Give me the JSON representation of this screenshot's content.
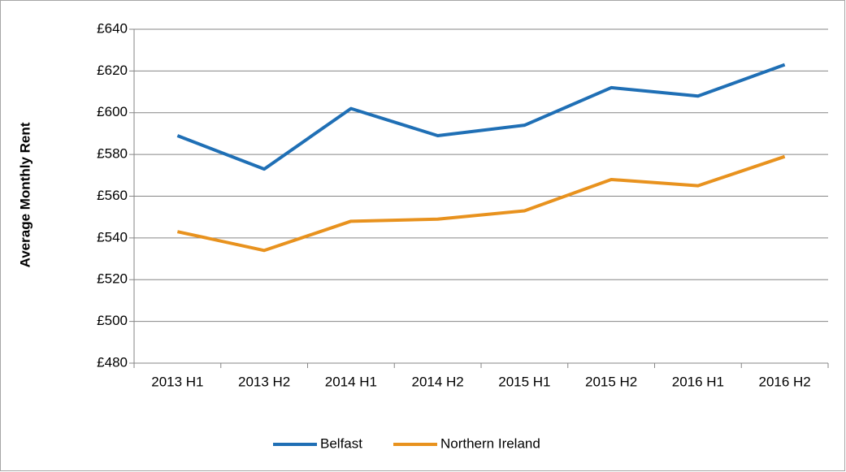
{
  "chart_data": {
    "type": "line",
    "y_label": "Average Monthly Rent",
    "categories": [
      "2013 H1",
      "2013 H2",
      "2014 H1",
      "2014 H2",
      "2015 H1",
      "2015 H2",
      "2016 H1",
      "2016 H2"
    ],
    "series": [
      {
        "name": "Belfast",
        "color": "#1f6fb5",
        "values": [
          589,
          573,
          602,
          589,
          594,
          612,
          608,
          623
        ]
      },
      {
        "name": "Northern Ireland",
        "color": "#e8921e",
        "values": [
          543,
          534,
          548,
          549,
          553,
          568,
          565,
          579
        ]
      }
    ],
    "ylim": [
      480,
      640
    ],
    "yticks": [
      {
        "value": 480,
        "label": "£480"
      },
      {
        "value": 500,
        "label": "£500"
      },
      {
        "value": 520,
        "label": "£520"
      },
      {
        "value": 540,
        "label": "£540"
      },
      {
        "value": 560,
        "label": "£560"
      },
      {
        "value": 580,
        "label": "£580"
      },
      {
        "value": 600,
        "label": "£600"
      },
      {
        "value": 620,
        "label": "£620"
      },
      {
        "value": 640,
        "label": "£640"
      }
    ],
    "grid": true,
    "legend": "bottom"
  }
}
